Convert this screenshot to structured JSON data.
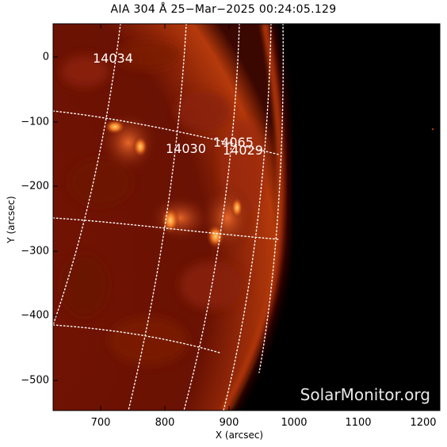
{
  "title": "AIA 304 Å 25−Mar−2025  00:24:05.129",
  "axes": {
    "xlabel": "X (arcsec)",
    "ylabel": "Y (arcsec)",
    "xticks": [
      "700",
      "800",
      "900",
      "1000",
      "1100",
      "1200"
    ],
    "yticks": [
      "0",
      "−100",
      "−200",
      "−300",
      "−400",
      "−500"
    ]
  },
  "regions": [
    {
      "id": "r1",
      "label": "14034"
    },
    {
      "id": "r2",
      "label": "14030"
    },
    {
      "id": "r3",
      "label": "14065"
    },
    {
      "id": "r4",
      "label": "14029"
    }
  ],
  "credit": "SolarMonitor.org",
  "colors": {
    "background": "#000000",
    "limb": "#b53a0c",
    "bright": "#ff9a3a",
    "grid": "#ffffff"
  }
}
